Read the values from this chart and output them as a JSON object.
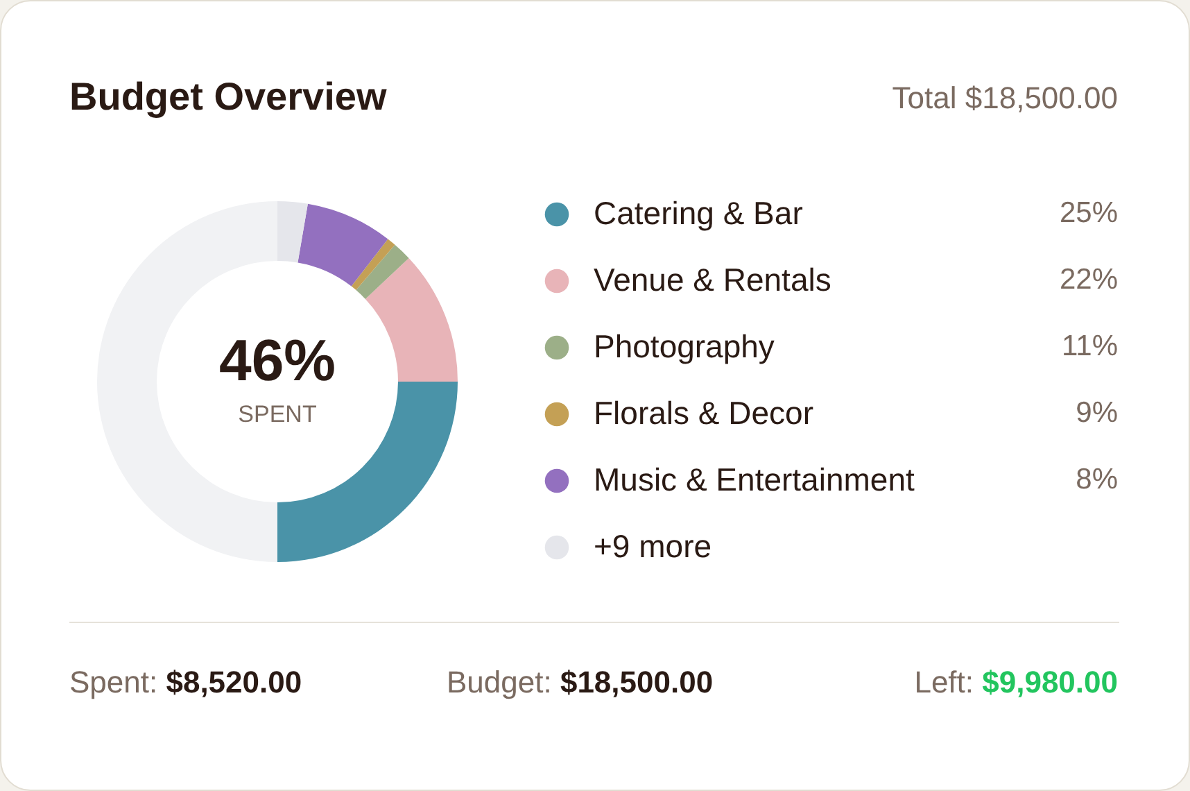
{
  "chart_data": {
    "type": "donut",
    "title": "Budget Overview",
    "categories": [
      "Catering & Bar",
      "Venue & Rentals",
      "Photography",
      "Florals & Decor",
      "Music & Entertainment",
      "+9 more",
      null
    ],
    "values": [
      25,
      12,
      1.7,
      0.8,
      7.8,
      2.7,
      50
    ],
    "colors": [
      "#4a93a8",
      "#e8b4b8",
      "#9caf88",
      "#c4a055",
      "#9370bf",
      "#e5e6eb",
      "#f1f2f4"
    ],
    "legend": "right",
    "annotations": [
      "Total $18,500.00",
      "46%",
      "SPENT",
      "25%",
      "22%",
      "11%",
      "9%",
      "8%",
      "Spent: $8,520.00",
      "Budget: $18,500.00",
      "Left: $9,980.00"
    ]
  }
}
